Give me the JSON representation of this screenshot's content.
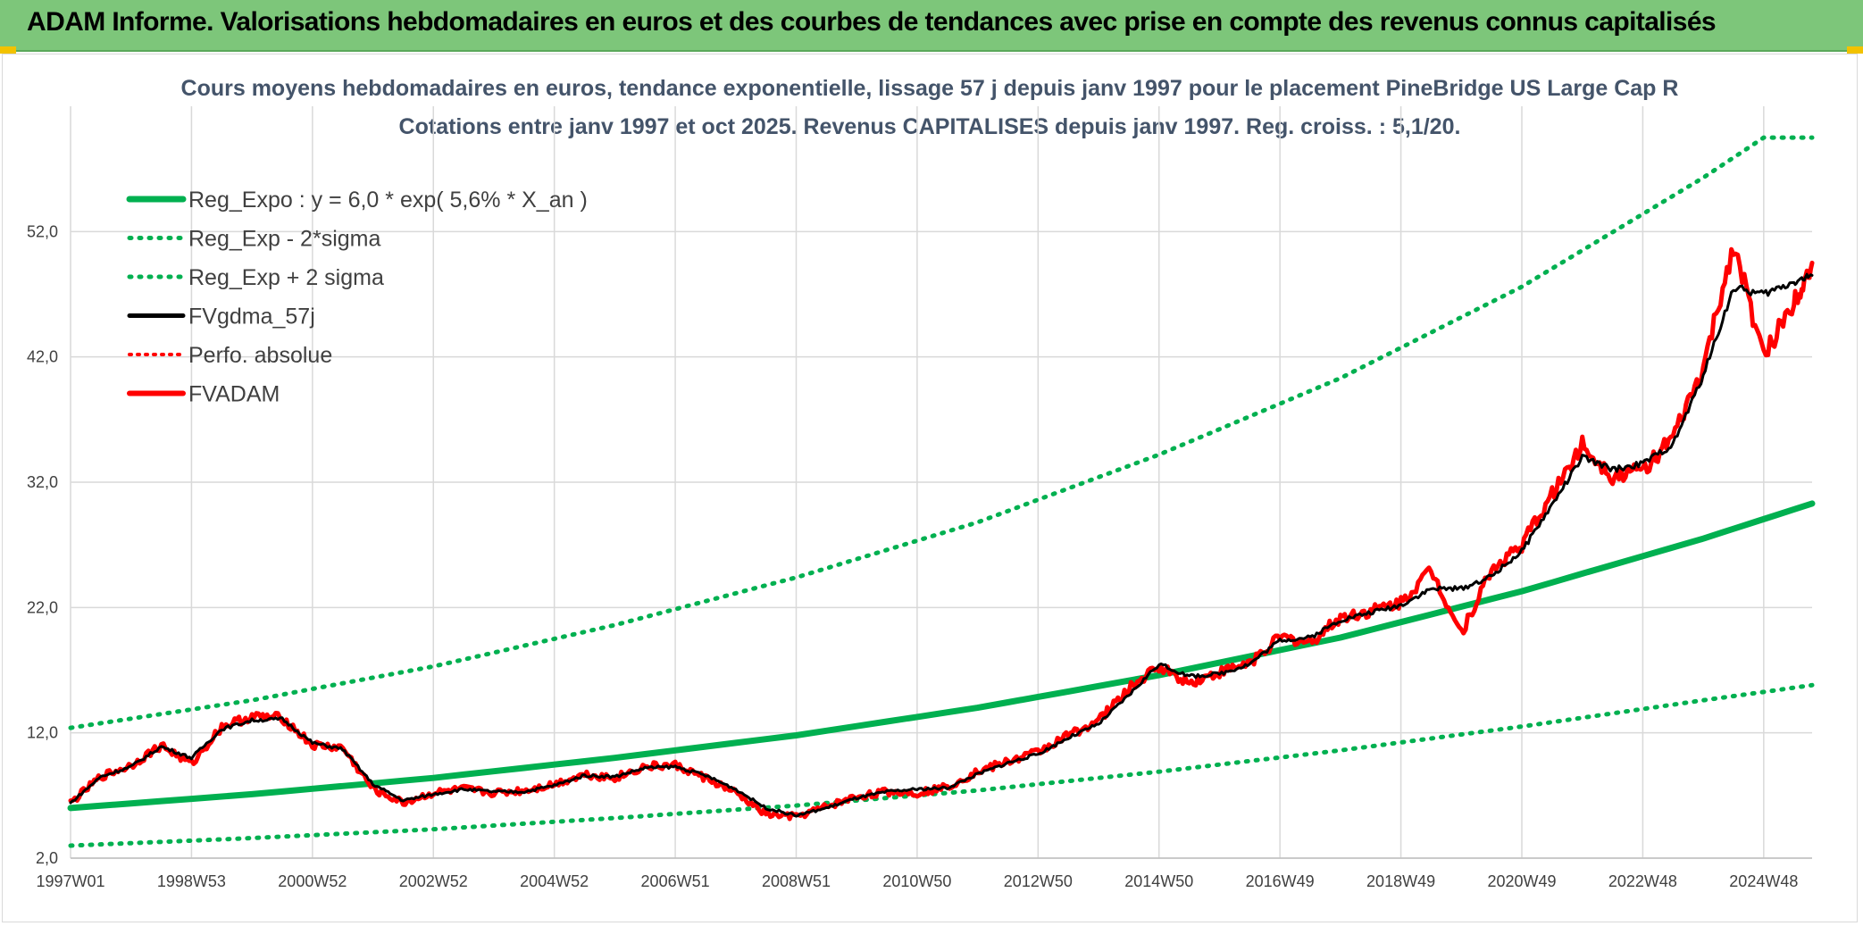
{
  "banner": {
    "title": "ADAM Informe. Valorisations hebdomadaires en euros et des courbes de tendances avec prise en compte des revenus connus capitalisés"
  },
  "chart_data": {
    "type": "line",
    "title": "Cours moyens hebdomadaires en euros, tendance exponentielle, lissage 57 j depuis janv 1997 pour le placement PineBridge US Large Cap R",
    "subtitle": "Cotations entre janv 1997 et oct 2025. Revenus CAPITALISES depuis janv 1997. Reg. croiss. : 5,1/20.",
    "xlabel": "",
    "ylabel": "",
    "x_range": [
      1997.0,
      2025.8
    ],
    "ylim": [
      2.0,
      62.0
    ],
    "y_ticks": [
      "2,0",
      "12,0",
      "22,0",
      "32,0",
      "42,0",
      "52,0"
    ],
    "y_tick_values": [
      2,
      12,
      22,
      32,
      42,
      52
    ],
    "x_ticks": [
      "1997W01",
      "1998W53",
      "2000W52",
      "2002W52",
      "2004W52",
      "2006W51",
      "2008W51",
      "2010W50",
      "2012W50",
      "2014W50",
      "2016W49",
      "2018W49",
      "2020W49",
      "2022W48",
      "2024W48"
    ],
    "x_tick_years": [
      1997.0,
      1999.0,
      2001.0,
      2003.0,
      2005.0,
      2007.0,
      2009.0,
      2011.0,
      2013.0,
      2015.0,
      2017.0,
      2019.0,
      2021.0,
      2023.0,
      2025.0
    ],
    "grid": "vertical and horizontal",
    "legend_position": "top-left",
    "colors": {
      "regression": "#00b050",
      "band": "#00b050",
      "smoothed": "#000000",
      "perf": "#ff0000",
      "fvadam": "#ff0000"
    },
    "legend": [
      {
        "label": "Reg_Expo : y = 6,0 * exp( 5,6% *  X_an )",
        "style": "solid-green"
      },
      {
        "label": "Reg_Exp - 2*sigma",
        "style": "dotted-green"
      },
      {
        "label": "Reg_Exp + 2 sigma",
        "style": "dotted-green"
      },
      {
        "label": "FVgdma_57j",
        "style": "solid-black"
      },
      {
        "label": "Perfo. absolue",
        "style": "dotted-red"
      },
      {
        "label": "FVADAM",
        "style": "solid-red"
      }
    ],
    "series": [
      {
        "name": "Reg_Expo : y = 6,0 * exp( 5,6% *  X_an )",
        "x": [
          1997.0,
          2000.0,
          2003.0,
          2006.0,
          2009.0,
          2012.0,
          2015.0,
          2018.0,
          2021.0,
          2024.0,
          2025.8
        ],
        "values": [
          6.0,
          7.1,
          8.4,
          10.0,
          11.8,
          14.0,
          16.6,
          19.6,
          23.3,
          27.5,
          30.3
        ]
      },
      {
        "name": "Reg_Exp - 2*sigma",
        "x": [
          1997.0,
          2000.0,
          2003.0,
          2006.0,
          2009.0,
          2012.0,
          2015.0,
          2018.0,
          2021.0,
          2024.0,
          2025.8
        ],
        "values": [
          3.0,
          3.6,
          4.3,
          5.2,
          6.2,
          7.4,
          8.9,
          10.6,
          12.5,
          14.6,
          15.8
        ]
      },
      {
        "name": "Reg_Exp + 2 sigma",
        "x": [
          1997.0,
          2000.0,
          2003.0,
          2006.0,
          2009.0,
          2012.0,
          2015.0,
          2018.0,
          2021.0,
          2024.0,
          2025.0,
          2025.8
        ],
        "values": [
          12.4,
          14.6,
          17.3,
          20.6,
          24.4,
          28.8,
          34.2,
          40.3,
          47.6,
          56.3,
          59.5,
          59.5
        ]
      },
      {
        "name": "FVgdma_57j",
        "x": [
          1997.0,
          1997.5,
          1998.0,
          1998.5,
          1999.0,
          1999.5,
          2000.0,
          2000.5,
          2001.0,
          2001.5,
          2002.0,
          2002.5,
          2003.0,
          2003.5,
          2004.0,
          2004.5,
          2005.0,
          2005.5,
          2006.0,
          2006.5,
          2007.0,
          2007.5,
          2008.0,
          2008.5,
          2009.0,
          2009.5,
          2010.0,
          2010.5,
          2011.0,
          2011.5,
          2012.0,
          2012.5,
          2013.0,
          2013.5,
          2014.0,
          2014.5,
          2015.0,
          2015.5,
          2016.0,
          2016.5,
          2017.0,
          2017.5,
          2018.0,
          2018.5,
          2019.0,
          2019.5,
          2020.0,
          2020.5,
          2021.0,
          2021.5,
          2022.0,
          2022.5,
          2023.0,
          2023.5,
          2024.0,
          2024.5,
          2025.0,
          2025.5,
          2025.8
        ],
        "values": [
          6.4,
          8.5,
          9.3,
          10.9,
          10.0,
          12.3,
          13.0,
          13.1,
          11.2,
          10.7,
          7.9,
          6.6,
          7.1,
          7.5,
          7.3,
          7.3,
          7.8,
          8.6,
          8.5,
          9.2,
          9.3,
          8.6,
          7.5,
          6.0,
          5.4,
          6.0,
          6.8,
          7.3,
          7.5,
          7.6,
          8.7,
          9.6,
          10.3,
          11.6,
          12.7,
          15.0,
          17.5,
          16.5,
          16.7,
          17.5,
          19.4,
          19.6,
          21.0,
          21.6,
          22.2,
          23.5,
          23.5,
          24.5,
          26.5,
          30.2,
          34.0,
          33.0,
          33.5,
          35.0,
          40.5,
          47.5,
          47.0,
          48.0,
          48.5
        ]
      },
      {
        "name": "FVADAM",
        "x": [
          1997.0,
          1997.5,
          1998.0,
          1998.5,
          1999.0,
          1999.5,
          2000.0,
          2000.5,
          2001.0,
          2001.5,
          2002.0,
          2002.5,
          2003.0,
          2003.5,
          2004.0,
          2004.5,
          2005.0,
          2005.5,
          2006.0,
          2006.5,
          2007.0,
          2007.5,
          2008.0,
          2008.5,
          2009.0,
          2009.5,
          2010.0,
          2010.5,
          2011.0,
          2011.5,
          2012.0,
          2012.5,
          2013.0,
          2013.5,
          2014.0,
          2014.5,
          2015.0,
          2015.5,
          2016.0,
          2016.5,
          2017.0,
          2017.5,
          2018.0,
          2018.5,
          2019.0,
          2019.5,
          2020.0,
          2020.5,
          2021.0,
          2021.5,
          2022.0,
          2022.5,
          2023.0,
          2023.5,
          2024.0,
          2024.5,
          2025.0,
          2025.5,
          2025.8
        ],
        "values": [
          6.4,
          8.5,
          9.4,
          11.0,
          9.5,
          12.5,
          13.3,
          13.2,
          11.0,
          10.8,
          7.5,
          6.4,
          7.2,
          7.5,
          7.2,
          7.4,
          7.9,
          8.7,
          8.4,
          9.3,
          9.4,
          8.4,
          7.2,
          5.5,
          5.3,
          6.1,
          6.9,
          7.3,
          7.2,
          7.7,
          8.9,
          9.7,
          10.5,
          11.8,
          13.0,
          15.5,
          17.3,
          16.0,
          16.8,
          17.6,
          19.6,
          19.2,
          21.2,
          21.7,
          22.4,
          25.0,
          20.0,
          25.0,
          27.0,
          31.0,
          35.0,
          32.5,
          33.0,
          35.5,
          41.0,
          51.0,
          42.0,
          46.5,
          49.5
        ]
      }
    ]
  }
}
